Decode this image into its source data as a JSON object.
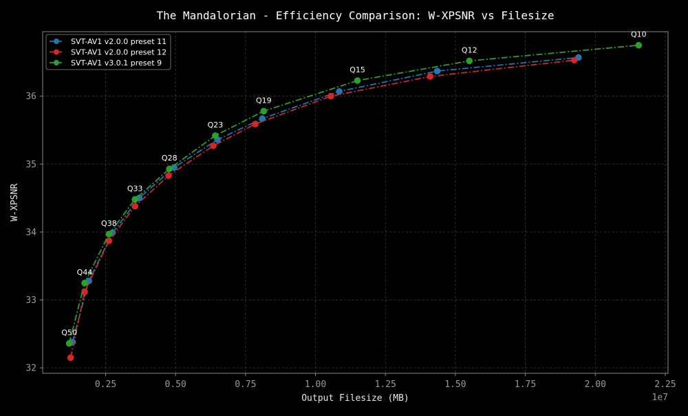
{
  "chart_data": {
    "type": "line",
    "title": "The Mandalorian - Efficiency Comparison: W-XPSNR vs Filesize",
    "xlabel": "Output Filesize (MB)",
    "ylabel": "W-XPSNR",
    "x_offset_text": "1e7",
    "xlim": [
      250000,
      22600000
    ],
    "ylim": [
      31.92,
      36.95
    ],
    "x_ticks": [
      2500000,
      5000000,
      7500000,
      10000000,
      12500000,
      15000000,
      17500000,
      20000000,
      22500000
    ],
    "x_tick_labels": [
      "0.25",
      "0.50",
      "0.75",
      "1.00",
      "1.25",
      "1.50",
      "1.75",
      "2.00",
      "2.25"
    ],
    "y_ticks": [
      32,
      33,
      34,
      35,
      36
    ],
    "y_tick_labels": [
      "32",
      "33",
      "34",
      "35",
      "36"
    ],
    "grid": true,
    "legend_position": "top-left",
    "series": [
      {
        "name": "SVT-AV1 v2.0.0 preset 11",
        "color": "#1f77b4",
        "x": [
          1320000,
          1900000,
          2750000,
          3700000,
          4950000,
          6500000,
          8100000,
          10850000,
          14350000,
          19400000
        ],
        "y": [
          32.38,
          33.28,
          33.99,
          34.5,
          34.95,
          35.36,
          35.67,
          36.07,
          36.37,
          36.57
        ]
      },
      {
        "name": "SVT-AV1 v2.0.0 preset 12",
        "color": "#d62728",
        "x": [
          1250000,
          1750000,
          2620000,
          3550000,
          4750000,
          6350000,
          7850000,
          10550000,
          14100000,
          19250000
        ],
        "y": [
          32.15,
          33.12,
          33.87,
          34.38,
          34.83,
          35.27,
          35.59,
          36.0,
          36.29,
          36.53
        ]
      },
      {
        "name": "SVT-AV1 v3.0.1 preset 9",
        "color": "#2ca02c",
        "x": [
          1200000,
          1750000,
          2620000,
          3550000,
          4780000,
          6420000,
          8150000,
          11500000,
          15500000,
          21550000
        ],
        "y": [
          32.36,
          33.25,
          33.97,
          34.48,
          34.93,
          35.42,
          35.78,
          36.23,
          36.52,
          36.75
        ]
      }
    ],
    "annotations": [
      {
        "text": "Q50",
        "x": 1200000,
        "y": 32.36
      },
      {
        "text": "Q44",
        "x": 1750000,
        "y": 33.25
      },
      {
        "text": "Q38",
        "x": 2620000,
        "y": 33.97
      },
      {
        "text": "Q33",
        "x": 3550000,
        "y": 34.48
      },
      {
        "text": "Q28",
        "x": 4780000,
        "y": 34.93
      },
      {
        "text": "Q23",
        "x": 6420000,
        "y": 35.42
      },
      {
        "text": "Q19",
        "x": 8150000,
        "y": 35.78
      },
      {
        "text": "Q15",
        "x": 11500000,
        "y": 36.23
      },
      {
        "text": "Q12",
        "x": 15500000,
        "y": 36.52
      },
      {
        "text": "Q10",
        "x": 21550000,
        "y": 36.75
      }
    ]
  }
}
